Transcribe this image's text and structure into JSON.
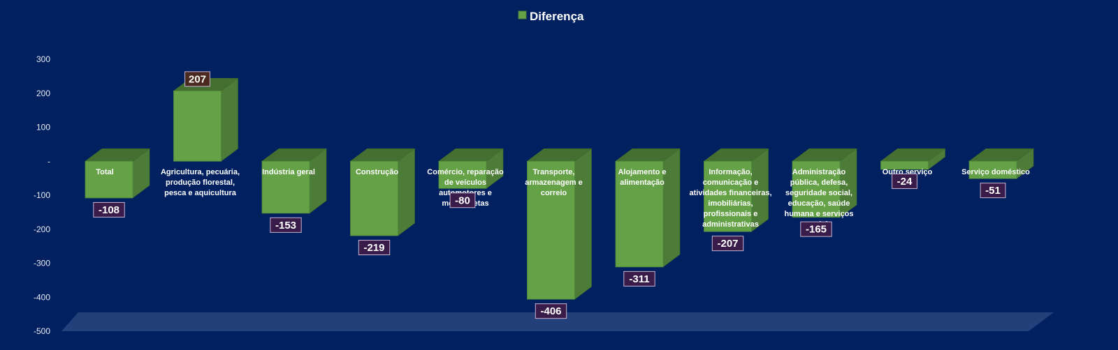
{
  "chart_data": {
    "type": "bar",
    "style": "3d-column",
    "legend": {
      "position": "top",
      "entries": [
        "Diferença"
      ]
    },
    "series": [
      {
        "name": "Diferença",
        "color": "#64a147",
        "values": [
          -108,
          207,
          -153,
          -219,
          -80,
          -406,
          -311,
          -207,
          -165,
          -24,
          -51
        ]
      }
    ],
    "categories": [
      "Total",
      "Agricultura, pecuária, produção florestal, pesca e aquicultura",
      "Indústria geral",
      "Construção",
      "Comércio, reparação de veículos automotores e motocicletas",
      "Transporte, armazenagem e correio",
      "Alojamento e alimentação",
      "Informação, comunicação e atividades financeiras, imobiliárias, profissionais e administrativas",
      "Administração pública, defesa, seguridade social, educação, saúde humana e serviços sociais",
      "Outro serviço",
      "Serviço doméstico"
    ],
    "category_label_lines": [
      [
        "Total"
      ],
      [
        "Agricultura, pecuária,",
        "produção florestal,",
        "pesca e aquicultura"
      ],
      [
        "Indústria geral"
      ],
      [
        "Construção"
      ],
      [
        "Comércio, reparação",
        "de veículos",
        "automotores e",
        "motocicletas"
      ],
      [
        "Transporte,",
        "armazenagem e",
        "correio"
      ],
      [
        "Alojamento e",
        "alimentação"
      ],
      [
        "Informação,",
        "comunicação e",
        "atividades financeiras,",
        "imobiliárias,",
        "profissionais e",
        "administrativas"
      ],
      [
        "Administração",
        "pública, defesa,",
        "seguridade social,",
        "educação, saúde",
        "humana e serviços",
        "sociais"
      ],
      [
        "Outro serviço"
      ],
      [
        "Serviço doméstico"
      ]
    ],
    "data_labels": [
      "-108",
      "207",
      "-153",
      "-219",
      "-80",
      "-406",
      "-311",
      "-207",
      "-165",
      "-24",
      "-51"
    ],
    "y_ticks": [
      {
        "value": 300,
        "label": "300"
      },
      {
        "value": 200,
        "label": "200"
      },
      {
        "value": 100,
        "label": "100"
      },
      {
        "value": 0,
        "label": "-"
      },
      {
        "value": -100,
        "label": "-100"
      },
      {
        "value": -200,
        "label": "-200"
      },
      {
        "value": -300,
        "label": "-300"
      },
      {
        "value": -400,
        "label": "-400"
      },
      {
        "value": -500,
        "label": "-500"
      }
    ],
    "ylim": [
      -500,
      300
    ],
    "grid": false,
    "colors": {
      "background": "#00205f",
      "bar_front": "#64a147",
      "bar_top": "#446f31",
      "bar_side": "#4d7c38",
      "floor": "#2a4680",
      "label_box": "#3a1c4a",
      "label_border": "#c9b6d3"
    }
  }
}
